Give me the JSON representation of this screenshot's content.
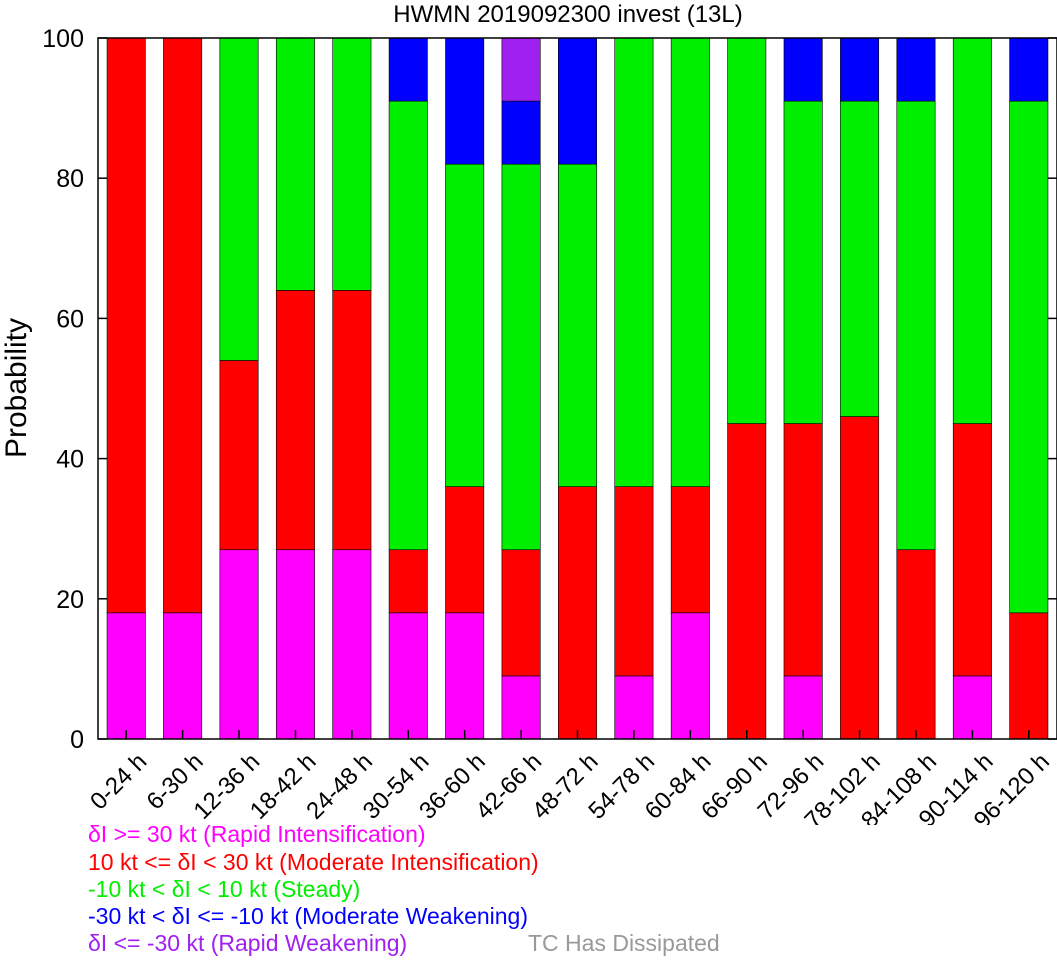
{
  "chart_data": {
    "type": "bar",
    "stacked": true,
    "title": "HWMN 2019092300 invest (13L)",
    "xlabel": "",
    "ylabel": "Probability",
    "ylim": [
      0,
      100
    ],
    "yticks": [
      "0",
      "20",
      "40",
      "60",
      "80",
      "100"
    ],
    "grid": false,
    "categories": [
      "0-24 h",
      "6-30 h",
      "12-36 h",
      "18-42 h",
      "24-48 h",
      "30-54 h",
      "36-60 h",
      "42-66 h",
      "48-72 h",
      "54-78 h",
      "60-84 h",
      "66-90 h",
      "72-96 h",
      "78-102 h",
      "84-108 h",
      "90-114 h",
      "96-120 h"
    ],
    "series": [
      {
        "name": "δI >= 30 kt (Rapid Intensification)",
        "color": "#ff00ff",
        "values": [
          18,
          18,
          27,
          27,
          27,
          18,
          18,
          9,
          0,
          9,
          18,
          0,
          9,
          0,
          0,
          9,
          0
        ]
      },
      {
        "name": "10 kt <= δI < 30 kt (Moderate Intensification)",
        "color": "#ff0000",
        "values": [
          82,
          82,
          27,
          37,
          37,
          9,
          18,
          18,
          36,
          27,
          18,
          45,
          36,
          46,
          27,
          36,
          18
        ]
      },
      {
        "name": "-10 kt < δI < 10 kt (Steady)",
        "color": "#00ee00",
        "values": [
          0,
          0,
          46,
          36,
          36,
          64,
          46,
          55,
          46,
          64,
          64,
          55,
          46,
          45,
          64,
          55,
          73
        ]
      },
      {
        "name": "-30 kt < δI <= -10 kt (Moderate Weakening)",
        "color": "#0000ff",
        "values": [
          0,
          0,
          0,
          0,
          0,
          9,
          18,
          9,
          18,
          0,
          0,
          0,
          9,
          9,
          9,
          0,
          9
        ]
      },
      {
        "name": "δI <= -30 kt (Rapid Weakening)",
        "color": "#a020f0",
        "values": [
          0,
          0,
          0,
          0,
          0,
          0,
          0,
          9,
          0,
          0,
          0,
          0,
          0,
          0,
          0,
          0,
          0
        ]
      },
      {
        "name": "TC Has Dissipated",
        "color": "#999999",
        "values": [
          0,
          0,
          0,
          0,
          0,
          0,
          0,
          0,
          0,
          0,
          0,
          0,
          0,
          0,
          0,
          0,
          0
        ]
      }
    ]
  },
  "legend": {
    "ri": "δI >= 30 kt (Rapid Intensification)",
    "mi": "10 kt <= δI < 30 kt (Moderate Intensification)",
    "steady": "-10 kt < δI < 10 kt (Steady)",
    "mw": "-30 kt < δI <= -10 kt (Moderate Weakening)",
    "rw": "δI <= -30 kt (Rapid Weakening)",
    "dissipated": "TC Has Dissipated"
  }
}
